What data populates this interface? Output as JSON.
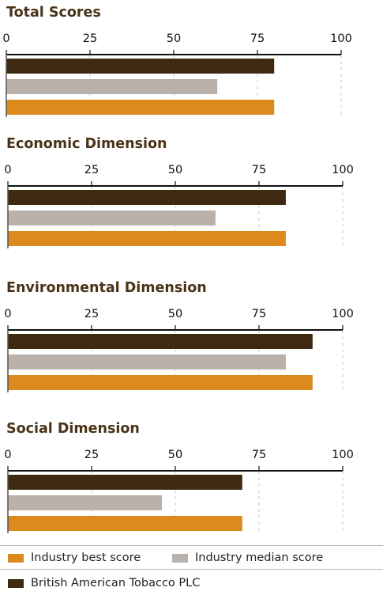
{
  "colors": {
    "company": "#3d2a10",
    "median": "#bbb1ab",
    "best": "#dc8a1e",
    "title": "#4a3318",
    "axis": "#111111",
    "grid": "#c8c8c8"
  },
  "chart_data": [
    {
      "type": "bar",
      "orientation": "horizontal",
      "title": "Total Scores",
      "xlim": [
        0,
        100
      ],
      "xticks": [
        "0",
        "25",
        "50",
        "75",
        "100"
      ],
      "series": [
        {
          "name": "British American Tobacco PLC",
          "value": 80
        },
        {
          "name": "Industry median score",
          "value": 63
        },
        {
          "name": "Industry best score",
          "value": 80
        }
      ]
    },
    {
      "type": "bar",
      "orientation": "horizontal",
      "title": "Economic Dimension",
      "xlim": [
        0,
        100
      ],
      "xticks": [
        "0",
        "25",
        "50",
        "75",
        "100"
      ],
      "series": [
        {
          "name": "British American Tobacco PLC",
          "value": 83
        },
        {
          "name": "Industry median score",
          "value": 62
        },
        {
          "name": "Industry best score",
          "value": 83
        }
      ]
    },
    {
      "type": "bar",
      "orientation": "horizontal",
      "title": "Environmental Dimension",
      "xlim": [
        0,
        100
      ],
      "xticks": [
        "0",
        "25",
        "50",
        "75",
        "100"
      ],
      "series": [
        {
          "name": "British American Tobacco PLC",
          "value": 91
        },
        {
          "name": "Industry median score",
          "value": 83
        },
        {
          "name": "Industry best score",
          "value": 91
        }
      ]
    },
    {
      "type": "bar",
      "orientation": "horizontal",
      "title": "Social Dimension",
      "xlim": [
        0,
        100
      ],
      "xticks": [
        "0",
        "25",
        "50",
        "75",
        "100"
      ],
      "series": [
        {
          "name": "British American Tobacco PLC",
          "value": 70
        },
        {
          "name": "Industry median score",
          "value": 46
        },
        {
          "name": "Industry best score",
          "value": 70
        }
      ]
    }
  ],
  "legend": {
    "best_label": "Industry best score",
    "median_label": "Industry median score",
    "company_label": "British American Tobacco PLC"
  }
}
